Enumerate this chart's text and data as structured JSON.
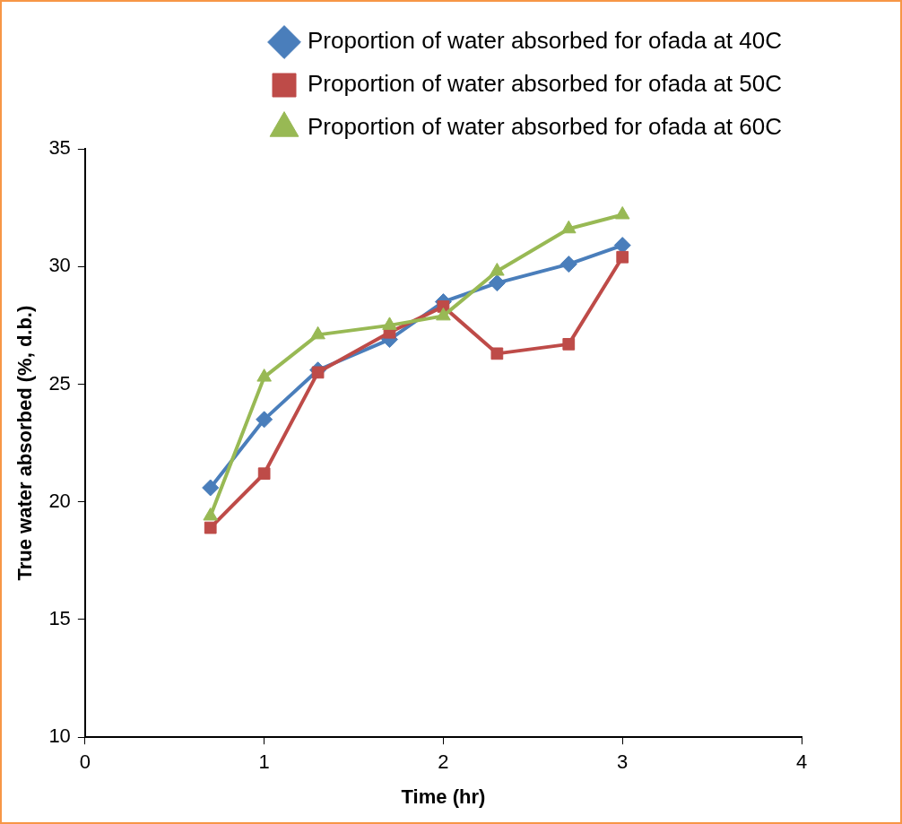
{
  "chart_data": {
    "type": "line",
    "xlabel": "Time (hr)",
    "ylabel": "True water absorbed (%, d.b.)",
    "x": [
      0.7,
      1,
      1.3,
      1.7,
      2,
      2.3,
      2.7,
      3
    ],
    "series": [
      {
        "name": "Proportion of water absorbed for ofada at 40C",
        "color": "#4a7ebb",
        "marker": "diamond",
        "values": [
          20.6,
          23.5,
          25.6,
          26.9,
          28.5,
          29.3,
          30.1,
          30.9
        ]
      },
      {
        "name": "Proportion of water absorbed for ofada at 50C",
        "color": "#be4b48",
        "marker": "square",
        "values": [
          18.9,
          21.2,
          25.5,
          27.2,
          28.3,
          26.3,
          26.7,
          30.4
        ]
      },
      {
        "name": "Proportion of water absorbed for ofada at 60C",
        "color": "#98b954",
        "marker": "triangle",
        "values": [
          19.4,
          25.3,
          27.1,
          27.5,
          27.9,
          29.8,
          31.6,
          32.2
        ]
      }
    ],
    "xlim": [
      0,
      4
    ],
    "xticks": [
      0,
      1,
      2,
      3,
      4
    ],
    "ylim": [
      10,
      35
    ],
    "yticks": [
      10,
      15,
      20,
      25,
      30,
      35
    ],
    "grid": false,
    "legend": "top",
    "line_style": "solid"
  }
}
